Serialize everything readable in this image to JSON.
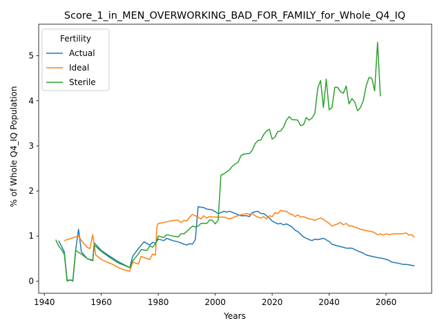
{
  "chart_data": {
    "type": "line",
    "title": "Score_1_in_MEN_OVERWORKING_BAD_FOR_FAMILY_for_Whole_Q4_IQ",
    "xlabel": "Years",
    "ylabel": "% of Whole Q4_IQ Population",
    "xlim": [
      1938,
      2076
    ],
    "ylim": [
      -0.27,
      5.7
    ],
    "xticks": [
      1940,
      1960,
      1980,
      2000,
      2020,
      2040,
      2060
    ],
    "yticks": [
      0,
      1,
      2,
      3,
      4,
      5
    ],
    "grid": false,
    "legend": {
      "title": "Fertility",
      "placement": "top-left"
    },
    "series": [
      {
        "name": "Actual",
        "color": "#1f77b4",
        "points": [
          [
            1945,
            0.9
          ],
          [
            1947,
            0.65
          ],
          [
            1948,
            0.02
          ],
          [
            1950,
            0.02
          ],
          [
            1951,
            0.7
          ],
          [
            1952,
            1.15
          ],
          [
            1953,
            0.65
          ],
          [
            1955,
            0.5
          ],
          [
            1957,
            0.45
          ],
          [
            1957.5,
            0.85
          ],
          [
            1960,
            0.68
          ],
          [
            1963,
            0.55
          ],
          [
            1966,
            0.43
          ],
          [
            1970,
            0.3
          ],
          [
            1971,
            0.55
          ],
          [
            1973,
            0.72
          ],
          [
            1975,
            0.87
          ],
          [
            1977,
            0.8
          ],
          [
            1978,
            0.86
          ],
          [
            1979,
            0.84
          ],
          [
            1980,
            0.93
          ],
          [
            1982,
            0.9
          ],
          [
            1983,
            0.95
          ],
          [
            1985,
            0.9
          ],
          [
            1987,
            0.87
          ],
          [
            1989,
            0.82
          ],
          [
            1990,
            0.8
          ],
          [
            1991,
            0.83
          ],
          [
            1992,
            0.82
          ],
          [
            1993,
            0.92
          ],
          [
            1994,
            1.65
          ],
          [
            1996,
            1.63
          ],
          [
            1997,
            1.6
          ],
          [
            1999,
            1.58
          ],
          [
            2001,
            1.5
          ],
          [
            2002,
            1.52
          ],
          [
            2003,
            1.55
          ],
          [
            2004,
            1.53
          ],
          [
            2005,
            1.55
          ],
          [
            2007,
            1.5
          ],
          [
            2009,
            1.45
          ],
          [
            2011,
            1.45
          ],
          [
            2012,
            1.43
          ],
          [
            2013,
            1.52
          ],
          [
            2015,
            1.55
          ],
          [
            2016,
            1.5
          ],
          [
            2017,
            1.5
          ],
          [
            2018,
            1.45
          ],
          [
            2019,
            1.4
          ],
          [
            2020,
            1.33
          ],
          [
            2022,
            1.27
          ],
          [
            2023,
            1.28
          ],
          [
            2024,
            1.25
          ],
          [
            2025,
            1.27
          ],
          [
            2027,
            1.2
          ],
          [
            2028,
            1.13
          ],
          [
            2029,
            1.1
          ],
          [
            2031,
            0.98
          ],
          [
            2033,
            0.92
          ],
          [
            2034,
            0.9
          ],
          [
            2035,
            0.93
          ],
          [
            2036,
            0.92
          ],
          [
            2038,
            0.95
          ],
          [
            2040,
            0.88
          ],
          [
            2041,
            0.82
          ],
          [
            2043,
            0.78
          ],
          [
            2045,
            0.75
          ],
          [
            2046,
            0.73
          ],
          [
            2048,
            0.73
          ],
          [
            2050,
            0.67
          ],
          [
            2052,
            0.62
          ],
          [
            2053,
            0.58
          ],
          [
            2055,
            0.55
          ],
          [
            2057,
            0.52
          ],
          [
            2059,
            0.5
          ],
          [
            2061,
            0.46
          ],
          [
            2062,
            0.42
          ],
          [
            2064,
            0.4
          ],
          [
            2066,
            0.37
          ],
          [
            2067,
            0.37
          ],
          [
            2068,
            0.36
          ],
          [
            2069,
            0.35
          ],
          [
            2070,
            0.34
          ]
        ]
      },
      {
        "name": "Ideal",
        "color": "#ff7f0e",
        "points": [
          [
            1947,
            0.9
          ],
          [
            1950,
            0.96
          ],
          [
            1952,
            1.0
          ],
          [
            1953,
            0.9
          ],
          [
            1955,
            0.75
          ],
          [
            1956,
            0.72
          ],
          [
            1957,
            1.03
          ],
          [
            1958,
            0.58
          ],
          [
            1960,
            0.48
          ],
          [
            1962,
            0.42
          ],
          [
            1964,
            0.37
          ],
          [
            1966,
            0.3
          ],
          [
            1968,
            0.25
          ],
          [
            1970,
            0.22
          ],
          [
            1971,
            0.42
          ],
          [
            1973,
            0.38
          ],
          [
            1974,
            0.55
          ],
          [
            1975,
            0.52
          ],
          [
            1977,
            0.48
          ],
          [
            1978,
            0.6
          ],
          [
            1979,
            0.58
          ],
          [
            1979.5,
            1.2
          ],
          [
            1980,
            1.28
          ],
          [
            1982,
            1.3
          ],
          [
            1984,
            1.33
          ],
          [
            1986,
            1.35
          ],
          [
            1987,
            1.35
          ],
          [
            1988,
            1.3
          ],
          [
            1989,
            1.35
          ],
          [
            1990,
            1.33
          ],
          [
            1991,
            1.42
          ],
          [
            1992,
            1.48
          ],
          [
            1993,
            1.45
          ],
          [
            1994,
            1.42
          ],
          [
            1995,
            1.38
          ],
          [
            1996,
            1.45
          ],
          [
            1997,
            1.4
          ],
          [
            1998,
            1.43
          ],
          [
            2000,
            1.42
          ],
          [
            2002,
            1.42
          ],
          [
            2003,
            1.42
          ],
          [
            2005,
            1.38
          ],
          [
            2006,
            1.4
          ],
          [
            2007,
            1.43
          ],
          [
            2008,
            1.45
          ],
          [
            2009,
            1.47
          ],
          [
            2011,
            1.5
          ],
          [
            2012,
            1.48
          ],
          [
            2013,
            1.5
          ],
          [
            2014,
            1.45
          ],
          [
            2015,
            1.42
          ],
          [
            2016,
            1.4
          ],
          [
            2017,
            1.43
          ],
          [
            2018,
            1.38
          ],
          [
            2019,
            1.45
          ],
          [
            2020,
            1.43
          ],
          [
            2021,
            1.52
          ],
          [
            2022,
            1.5
          ],
          [
            2023,
            1.57
          ],
          [
            2024,
            1.55
          ],
          [
            2025,
            1.55
          ],
          [
            2026,
            1.5
          ],
          [
            2027,
            1.48
          ],
          [
            2028,
            1.43
          ],
          [
            2029,
            1.47
          ],
          [
            2030,
            1.42
          ],
          [
            2031,
            1.43
          ],
          [
            2033,
            1.38
          ],
          [
            2034,
            1.37
          ],
          [
            2035,
            1.35
          ],
          [
            2037,
            1.4
          ],
          [
            2038,
            1.37
          ],
          [
            2040,
            1.28
          ],
          [
            2041,
            1.22
          ],
          [
            2042,
            1.25
          ],
          [
            2043,
            1.27
          ],
          [
            2044,
            1.3
          ],
          [
            2045,
            1.25
          ],
          [
            2046,
            1.28
          ],
          [
            2047,
            1.22
          ],
          [
            2048,
            1.22
          ],
          [
            2049,
            1.2
          ],
          [
            2051,
            1.15
          ],
          [
            2053,
            1.12
          ],
          [
            2055,
            1.1
          ],
          [
            2056,
            1.07
          ],
          [
            2057,
            1.03
          ],
          [
            2058,
            1.05
          ],
          [
            2059,
            1.02
          ],
          [
            2060,
            1.05
          ],
          [
            2061,
            1.03
          ],
          [
            2063,
            1.05
          ],
          [
            2064,
            1.05
          ],
          [
            2066,
            1.05
          ],
          [
            2067,
            1.07
          ],
          [
            2068,
            1.02
          ],
          [
            2069,
            1.03
          ],
          [
            2070,
            0.97
          ]
        ]
      },
      {
        "name": "Sterile",
        "color": "#2ca02c",
        "points": [
          [
            1944,
            0.92
          ],
          [
            1945,
            0.78
          ],
          [
            1946,
            0.7
          ],
          [
            1947,
            0.6
          ],
          [
            1948,
            0.0
          ],
          [
            1949,
            0.03
          ],
          [
            1950,
            0.0
          ],
          [
            1951,
            0.68
          ],
          [
            1953,
            0.6
          ],
          [
            1955,
            0.5
          ],
          [
            1957,
            0.46
          ],
          [
            1957.5,
            0.8
          ],
          [
            1960,
            0.66
          ],
          [
            1963,
            0.52
          ],
          [
            1966,
            0.4
          ],
          [
            1968,
            0.35
          ],
          [
            1970,
            0.3
          ],
          [
            1971,
            0.45
          ],
          [
            1973,
            0.6
          ],
          [
            1974,
            0.7
          ],
          [
            1976,
            0.68
          ],
          [
            1977,
            0.78
          ],
          [
            1978,
            0.75
          ],
          [
            1979,
            0.82
          ],
          [
            1980,
            1.0
          ],
          [
            1981,
            0.98
          ],
          [
            1982,
            0.97
          ],
          [
            1983,
            1.03
          ],
          [
            1985,
            1.0
          ],
          [
            1987,
            0.98
          ],
          [
            1988,
            1.05
          ],
          [
            1989,
            1.05
          ],
          [
            1990,
            1.1
          ],
          [
            1992,
            1.22
          ],
          [
            1993,
            1.2
          ],
          [
            1994,
            1.22
          ],
          [
            1995,
            1.28
          ],
          [
            1996,
            1.28
          ],
          [
            1997,
            1.28
          ],
          [
            1998,
            1.35
          ],
          [
            1999,
            1.35
          ],
          [
            2000,
            1.27
          ],
          [
            2001,
            1.35
          ],
          [
            2002,
            2.35
          ],
          [
            2003,
            2.38
          ],
          [
            2004,
            2.42
          ],
          [
            2005,
            2.47
          ],
          [
            2006,
            2.55
          ],
          [
            2007,
            2.6
          ],
          [
            2008,
            2.63
          ],
          [
            2009,
            2.78
          ],
          [
            2010,
            2.82
          ],
          [
            2012,
            2.83
          ],
          [
            2013,
            2.9
          ],
          [
            2014,
            3.05
          ],
          [
            2015,
            3.12
          ],
          [
            2016,
            3.13
          ],
          [
            2017,
            3.25
          ],
          [
            2018,
            3.33
          ],
          [
            2019,
            3.37
          ],
          [
            2020,
            3.15
          ],
          [
            2021,
            3.2
          ],
          [
            2022,
            3.32
          ],
          [
            2023,
            3.33
          ],
          [
            2024,
            3.42
          ],
          [
            2025,
            3.57
          ],
          [
            2026,
            3.65
          ],
          [
            2027,
            3.58
          ],
          [
            2028,
            3.58
          ],
          [
            2029,
            3.57
          ],
          [
            2030,
            3.45
          ],
          [
            2031,
            3.47
          ],
          [
            2032,
            3.63
          ],
          [
            2033,
            3.57
          ],
          [
            2034,
            3.62
          ],
          [
            2035,
            3.72
          ],
          [
            2036,
            4.28
          ],
          [
            2037,
            4.45
          ],
          [
            2038,
            3.85
          ],
          [
            2039,
            4.48
          ],
          [
            2040,
            3.8
          ],
          [
            2041,
            3.85
          ],
          [
            2042,
            4.3
          ],
          [
            2043,
            4.3
          ],
          [
            2044,
            4.2
          ],
          [
            2045,
            4.17
          ],
          [
            2046,
            4.33
          ],
          [
            2047,
            3.93
          ],
          [
            2048,
            4.05
          ],
          [
            2049,
            3.97
          ],
          [
            2050,
            3.78
          ],
          [
            2051,
            3.85
          ],
          [
            2052,
            4.0
          ],
          [
            2053,
            4.33
          ],
          [
            2054,
            4.52
          ],
          [
            2055,
            4.5
          ],
          [
            2056,
            4.22
          ],
          [
            2057,
            5.3
          ],
          [
            2058,
            4.1
          ]
        ]
      }
    ]
  }
}
